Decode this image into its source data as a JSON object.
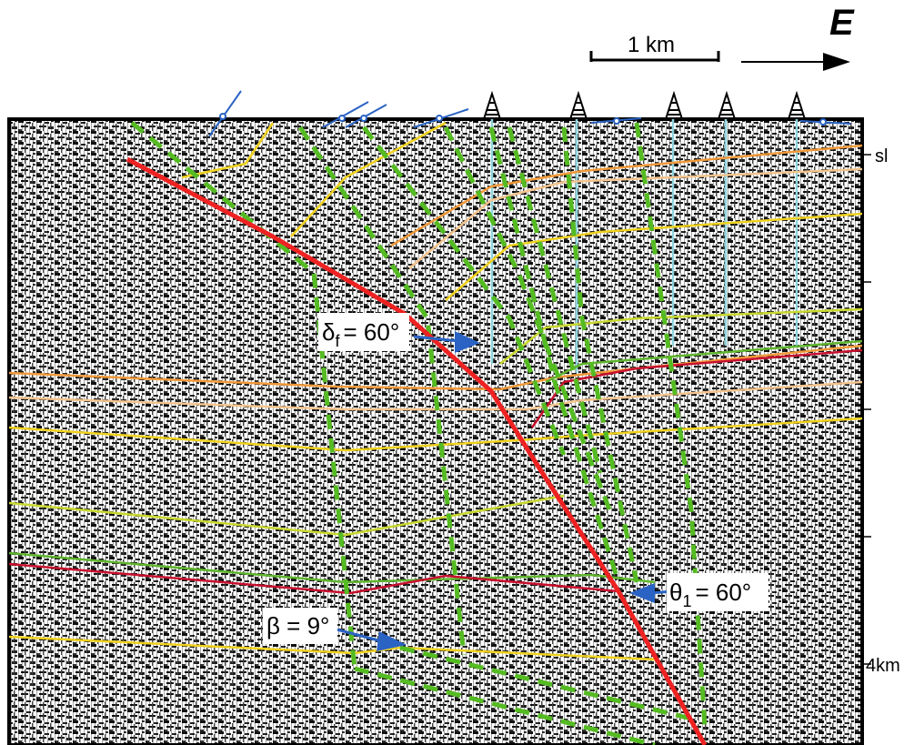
{
  "orientation": {
    "label": "E"
  },
  "scale_bar": {
    "label": "1 km"
  },
  "depth_axis": {
    "top_label": "sl",
    "bottom_label": "4km"
  },
  "annotations": {
    "fault_dip": {
      "symbol": "δ",
      "subscript": "f",
      "value_text": "= 60°"
    },
    "cutoff_angle": {
      "symbol": "θ",
      "subscript": "1",
      "value_text": "= 60°"
    },
    "beta_angle": {
      "text": "β = 9°"
    }
  },
  "colors": {
    "fault": "#ee2222",
    "axial_surface": "#55bb22",
    "horizon_orange": "#f19a3a",
    "horizon_peach": "#f4c48e",
    "horizon_yellow": "#f0d21e",
    "horizon_lime": "#c9d82f",
    "horizon_green": "#5fb52e",
    "horizon_red": "#c8102e",
    "well": "#8fd4dc",
    "dip_arrow": "#2a63c4"
  },
  "icons": [
    "north-arrow-icon",
    "oil-derrick-icon",
    "dip-marker-icon"
  ],
  "wells_count": 5
}
